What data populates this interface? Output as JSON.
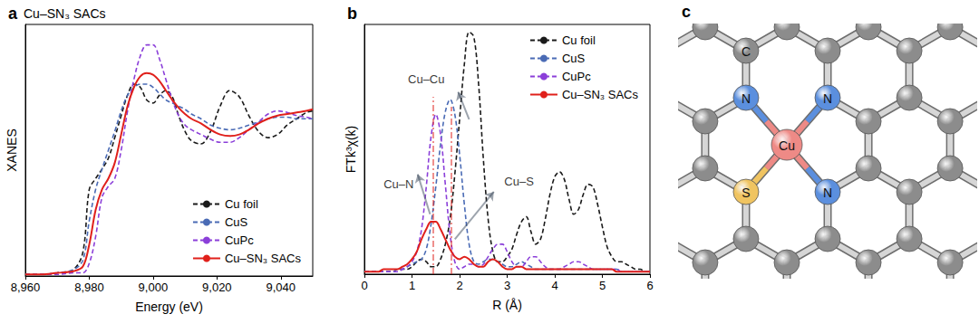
{
  "chart_data": [
    {
      "panel": "a",
      "type": "line",
      "title": "Cu–SN₃ SACs",
      "x_label": "Energy (eV)",
      "y_label": "XANES",
      "x": [
        8960,
        8965,
        8970,
        8975,
        8978,
        8980,
        8982,
        8984,
        8986,
        8988,
        8990,
        8992,
        8994,
        8996,
        8998,
        9000,
        9002,
        9004,
        9006,
        9008,
        9010,
        9012,
        9015,
        9018,
        9021,
        9024,
        9027,
        9030,
        9033,
        9036,
        9039,
        9042,
        9045,
        9048,
        9050
      ],
      "xlim": [
        8960,
        9050
      ],
      "xticks": [
        {
          "value": 8960,
          "label": "8,960"
        },
        {
          "value": 8980,
          "label": "8,980"
        },
        {
          "value": 9000,
          "label": "9,000"
        },
        {
          "value": 9020,
          "label": "9,020"
        },
        {
          "value": 9040,
          "label": "9,040"
        }
      ],
      "ylim": [
        0,
        1.6
      ],
      "tick_labels": "x",
      "legend": "lower right",
      "series": [
        {
          "name": "Cu foil",
          "color": "#1a1a1a",
          "line_style": "dashed",
          "values": [
            0.01,
            0.01,
            0.02,
            0.04,
            0.15,
            0.55,
            0.62,
            0.68,
            0.75,
            0.88,
            1.02,
            1.15,
            1.22,
            1.2,
            1.12,
            1.1,
            1.15,
            1.18,
            1.14,
            1.02,
            0.92,
            0.86,
            0.84,
            0.92,
            1.08,
            1.18,
            1.14,
            1.02,
            0.92,
            0.88,
            0.9,
            0.96,
            1.0,
            1.04,
            1.05
          ]
        },
        {
          "name": "CuS",
          "color": "#4a6bb5",
          "line_style": "dashed",
          "values": [
            0.01,
            0.01,
            0.02,
            0.04,
            0.1,
            0.35,
            0.55,
            0.68,
            0.8,
            0.92,
            1.05,
            1.15,
            1.2,
            1.22,
            1.22,
            1.2,
            1.16,
            1.12,
            1.1,
            1.08,
            1.06,
            1.03,
            1.0,
            0.96,
            0.94,
            0.93,
            0.94,
            0.96,
            0.98,
            1.0,
            1.01,
            1.01,
            1.0,
            1.0,
            1.0
          ]
        },
        {
          "name": "CuPc",
          "color": "#8b3fd9",
          "line_style": "dashed",
          "values": [
            0.01,
            0.01,
            0.01,
            0.02,
            0.02,
            0.08,
            0.25,
            0.5,
            0.57,
            0.62,
            0.8,
            1.05,
            1.25,
            1.4,
            1.47,
            1.47,
            1.38,
            1.25,
            1.12,
            1.02,
            0.96,
            0.93,
            0.9,
            0.87,
            0.85,
            0.85,
            0.88,
            0.93,
            0.98,
            1.03,
            1.05,
            1.04,
            1.02,
            1.01,
            1.0
          ]
        },
        {
          "name": "Cu–SN₃ SACs",
          "color": "#e0201b",
          "line_style": "solid",
          "values": [
            0.01,
            0.01,
            0.02,
            0.03,
            0.06,
            0.2,
            0.42,
            0.55,
            0.62,
            0.72,
            0.9,
            1.08,
            1.2,
            1.27,
            1.29,
            1.28,
            1.24,
            1.18,
            1.12,
            1.07,
            1.03,
            1.0,
            0.97,
            0.93,
            0.9,
            0.89,
            0.9,
            0.93,
            0.97,
            1.0,
            1.02,
            1.03,
            1.04,
            1.05,
            1.06
          ]
        }
      ]
    },
    {
      "panel": "b",
      "type": "line",
      "x_label": "R (Å)",
      "y_label": "FTk³χ(k)",
      "x": [
        0,
        0.1,
        0.2,
        0.3,
        0.4,
        0.5,
        0.6,
        0.7,
        0.8,
        0.9,
        1,
        1.1,
        1.2,
        1.3,
        1.4,
        1.5,
        1.6,
        1.7,
        1.8,
        1.9,
        2,
        2.1,
        2.2,
        2.3,
        2.4,
        2.5,
        2.6,
        2.7,
        2.8,
        2.9,
        3,
        3.1,
        3.2,
        3.3,
        3.4,
        3.5,
        3.6,
        3.7,
        3.8,
        3.9,
        4,
        4.1,
        4.2,
        4.3,
        4.4,
        4.5,
        4.6,
        4.7,
        4.8,
        4.9,
        5,
        5.1,
        5.2,
        5.3,
        5.4,
        5.5,
        5.6,
        5.7,
        5.8,
        5.9,
        6
      ],
      "xlim": [
        0,
        6
      ],
      "xticks": [
        0,
        1,
        2,
        3,
        4,
        5,
        6
      ],
      "ylim": [
        0,
        1
      ],
      "tick_labels": "x",
      "legend": "upper right",
      "series": [
        {
          "name": "Cu foil",
          "color": "#1a1a1a",
          "line_style": "dashed",
          "values": [
            0.01,
            0.01,
            0.01,
            0.01,
            0.01,
            0.01,
            0.01,
            0.02,
            0.02,
            0.02,
            0.03,
            0.05,
            0.06,
            0.05,
            0.03,
            0.03,
            0.06,
            0.12,
            0.22,
            0.4,
            0.62,
            0.84,
            0.97,
            0.95,
            0.76,
            0.46,
            0.22,
            0.09,
            0.05,
            0.05,
            0.07,
            0.1,
            0.16,
            0.21,
            0.23,
            0.17,
            0.12,
            0.14,
            0.22,
            0.32,
            0.39,
            0.41,
            0.38,
            0.3,
            0.24,
            0.26,
            0.32,
            0.36,
            0.35,
            0.28,
            0.19,
            0.11,
            0.07,
            0.05,
            0.05,
            0.04,
            0.03,
            0.02,
            0.02,
            0.01,
            0.01
          ]
        },
        {
          "name": "CuS",
          "color": "#4a6bb5",
          "line_style": "dashed",
          "values": [
            0.01,
            0.01,
            0.01,
            0.01,
            0.01,
            0.01,
            0.01,
            0.02,
            0.02,
            0.03,
            0.04,
            0.05,
            0.06,
            0.1,
            0.2,
            0.35,
            0.52,
            0.65,
            0.7,
            0.64,
            0.48,
            0.28,
            0.12,
            0.05,
            0.04,
            0.05,
            0.06,
            0.06,
            0.05,
            0.04,
            0.03,
            0.03,
            0.04,
            0.05,
            0.04,
            0.03,
            0.02,
            0.02,
            0.02,
            0.02,
            0.02,
            0.02,
            0.02,
            0.02,
            0.02,
            0.02,
            0.02,
            0.02,
            0.02,
            0.02,
            0.02,
            0.02,
            0.02,
            0.02,
            0.01,
            0.01,
            0.01,
            0.01,
            0.01,
            0.01,
            0.01
          ]
        },
        {
          "name": "CuPc",
          "color": "#8b3fd9",
          "line_style": "dashed",
          "values": [
            0.01,
            0.01,
            0.01,
            0.01,
            0.01,
            0.01,
            0.01,
            0.01,
            0.02,
            0.03,
            0.05,
            0.09,
            0.18,
            0.35,
            0.55,
            0.64,
            0.56,
            0.36,
            0.16,
            0.05,
            0.02,
            0.03,
            0.04,
            0.04,
            0.03,
            0.04,
            0.07,
            0.1,
            0.12,
            0.12,
            0.09,
            0.05,
            0.03,
            0.03,
            0.05,
            0.07,
            0.07,
            0.05,
            0.03,
            0.02,
            0.02,
            0.02,
            0.03,
            0.04,
            0.05,
            0.05,
            0.04,
            0.03,
            0.02,
            0.02,
            0.02,
            0.02,
            0.02,
            0.02,
            0.01,
            0.01,
            0.01,
            0.01,
            0.01,
            0.01,
            0.01
          ]
        },
        {
          "name": "Cu–SN₃ SACs",
          "color": "#e0201b",
          "line_style": "solid",
          "values": [
            0.01,
            0.01,
            0.01,
            0.01,
            0.02,
            0.02,
            0.02,
            0.02,
            0.03,
            0.04,
            0.06,
            0.09,
            0.14,
            0.18,
            0.21,
            0.21,
            0.18,
            0.14,
            0.1,
            0.07,
            0.06,
            0.07,
            0.06,
            0.04,
            0.03,
            0.03,
            0.05,
            0.06,
            0.05,
            0.03,
            0.02,
            0.02,
            0.03,
            0.03,
            0.02,
            0.02,
            0.02,
            0.02,
            0.02,
            0.02,
            0.02,
            0.02,
            0.02,
            0.02,
            0.02,
            0.02,
            0.02,
            0.02,
            0.02,
            0.02,
            0.02,
            0.02,
            0.02,
            0.01,
            0.01,
            0.01,
            0.01,
            0.01,
            0.01,
            0.01,
            0.01
          ]
        }
      ],
      "annotations": [
        {
          "text": "Cu–Cu",
          "x": 1.3,
          "y": 0.78,
          "arrow": [
            [
              2.2,
              0.62
            ],
            [
              1.97,
              0.73
            ]
          ]
        },
        {
          "text": "Cu–N",
          "x": 0.72,
          "y": 0.36,
          "arrow": [
            [
              1.38,
              0.24
            ],
            [
              1.12,
              0.4
            ]
          ]
        },
        {
          "text": "Cu–S",
          "x": 3.25,
          "y": 0.37,
          "arrow": [
            [
              1.9,
              0.14
            ],
            [
              2.72,
              0.33
            ]
          ]
        }
      ],
      "reference_lines": [
        {
          "x": 1.45,
          "y": [
            0,
            0.71
          ],
          "color": "#e0201b",
          "line_style": "dashdot"
        },
        {
          "x": 1.82,
          "y": [
            0,
            0.67
          ],
          "color": "#e0201b",
          "line_style": "dashdot"
        }
      ]
    }
  ],
  "diagram": {
    "panel": "c",
    "atoms": [
      {
        "label": "C",
        "color": "#8c8c8c"
      },
      {
        "label": "Cu",
        "color": "#ee8a86"
      },
      {
        "label": "N",
        "color": "#5b8fde"
      },
      {
        "label": "N",
        "color": "#5b8fde"
      },
      {
        "label": "N",
        "color": "#5b8fde"
      },
      {
        "label": "S",
        "color": "#f0c461"
      }
    ]
  }
}
